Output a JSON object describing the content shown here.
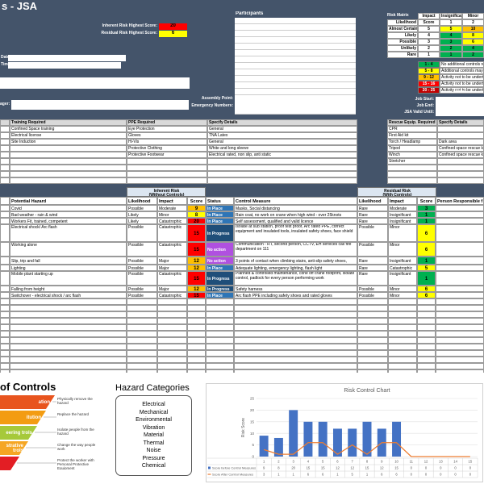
{
  "header": {
    "title": "s - JSA",
    "inherent_label": "Inherent Risk Highest Score:",
    "inherent_score": 20,
    "inherent_color": "#ff0000",
    "residual_label": "Residual Risk Highest Score:",
    "residual_score": 6,
    "residual_color": "#ffff00",
    "participants_label": "Participants",
    "date_label": "Date:",
    "time_label": "Time:",
    "manager_label": "ager:",
    "assembly_label": "Assembly Point:",
    "emergency_label": "Emergency Numbers:",
    "job_start_label": "Job Start:",
    "job_end_label": "Job End:",
    "valid_label": "JSA Valid Until:",
    "date_heading": "Date"
  },
  "risk_matrix": {
    "title": "Risk Matrix",
    "impact_label": "Impact",
    "impacts": [
      "Insignificant",
      "Minor"
    ],
    "likelihood_label": "Likelihood",
    "score_label": "Score",
    "impact_scores": [
      1,
      2
    ],
    "rows": [
      {
        "likelihood": "Almost Certain",
        "score": 5,
        "cells": [
          5,
          10
        ],
        "colors": [
          "#ffff00",
          "#ffc000"
        ]
      },
      {
        "likelihood": "Likely",
        "score": 4,
        "cells": [
          4,
          8
        ],
        "colors": [
          "#00b050",
          "#ffff00"
        ]
      },
      {
        "likelihood": "Possible",
        "score": 3,
        "cells": [
          3,
          6
        ],
        "colors": [
          "#00b050",
          "#ffff00"
        ]
      },
      {
        "likelihood": "Unlikely",
        "score": 2,
        "cells": [
          2,
          4
        ],
        "colors": [
          "#00b050",
          "#00b050"
        ]
      },
      {
        "likelihood": "Rare",
        "score": 1,
        "cells": [
          1,
          2
        ],
        "colors": [
          "#00b050",
          "#00b050"
        ]
      }
    ]
  },
  "risk_bands": [
    {
      "range": "1 - 4",
      "text": "No additional controls required",
      "color": "#00b050"
    },
    {
      "range": "5 - 8",
      "text": "Additional controls may be required",
      "color": "#ffff00"
    },
    {
      "range": "9 - 12",
      "text": "Activity not to be undertaken without s",
      "color": "#ffc000"
    },
    {
      "range": "15 - 16",
      "text": "Activity not to be undertaken without sh",
      "color": "#ff0000"
    },
    {
      "range": "20 - 25",
      "text": "Activity not to be undertaken. Safer Alte",
      "color": "#c00000"
    }
  ],
  "training": {
    "headers": [
      "Training Required",
      "PPE Required",
      "Specify Details",
      "Rescue Equip. Required",
      "Specify Details"
    ],
    "training": [
      "Confined Space training",
      "Electrical license",
      "Site Induction"
    ],
    "ppe": [
      "Eye Protection",
      "Gloves",
      "Hi-Vis",
      "Protective Clothing",
      "Protective Footwear"
    ],
    "ppe_details": [
      "General",
      "TNA Latex",
      "General",
      "White and long sleeve",
      "Electrical rated, non slip, anti static"
    ],
    "rescue": [
      {
        "item": "CPR"
      },
      {
        "item": "First Aid kit"
      },
      {
        "item": "Torch / Headlamp",
        "details": "Dark area"
      },
      {
        "item": "Tripod",
        "details": "Confined space rescue kit"
      },
      {
        "item": "Winch",
        "details": "Confined space rescue kit"
      },
      {
        "item": "Stretcher"
      }
    ]
  },
  "hazards": {
    "inherent_title": "Inherent Risk",
    "inherent_sub": "(Without Controls)",
    "residual_title": "Residual Risk",
    "residual_sub": "(With Controls)",
    "columns": [
      "Potential Hazard",
      "Likelihood",
      "Impact",
      "Score",
      "Status",
      "Control Measure",
      "Likelihood",
      "Impact",
      "Score",
      "Person Responsible f"
    ],
    "status_colors": {
      "In Place": "#2e75b6",
      "In Progress": "#1f4e79",
      "No action": "#b050e0"
    },
    "rows": [
      {
        "hazard": "Covid",
        "likelihood": "Possible",
        "impact": "Moderate",
        "score": 9,
        "score_color": "#ffc000",
        "status": "In Place",
        "control": "Masks, Social distancing",
        "res_likelihood": "Rare",
        "res_impact": "Moderate",
        "res_score": 3,
        "res_color": "#00b050"
      },
      {
        "hazard": "Bad weather - rain & wind",
        "likelihood": "Likely",
        "impact": "Minor",
        "score": 8,
        "score_color": "#ffff00",
        "status": "In Place",
        "control": "Rain coat, no work on crane when high wind - over 25knots",
        "res_likelihood": "Rare",
        "res_impact": "Insignificant",
        "res_score": 1,
        "res_color": "#00b050"
      },
      {
        "hazard": "Workers Fit, trained, competent",
        "likelihood": "Likely",
        "impact": "Catastrophic",
        "score": 20,
        "score_color": "#ff0000",
        "status": "In Place",
        "control": "Self assessment, qualified and valid licence",
        "res_likelihood": "Rare",
        "res_impact": "Insignificant",
        "res_score": 1,
        "res_color": "#00b050"
      },
      {
        "hazard": "Electrical shock/ Arc flash",
        "likelihood": "Possible",
        "impact": "Catastrophic",
        "score": 15,
        "score_color": "#ff0000",
        "status": "In Progress",
        "control": "Isolate at sub station, proof test proof, Arc rated PPE, correct equipment and insulated tools, insulated safety shoes, face shield",
        "res_likelihood": "Possible",
        "res_impact": "Minor",
        "res_score": 6,
        "res_color": "#ffff00"
      },
      {
        "hazard": "Working alone",
        "likelihood": "Possible",
        "impact": "Catastrophic",
        "score": 15,
        "score_color": "#ff0000",
        "status": "No action",
        "control": "Communication - RT, second person, CCTV, EH services call fire department on 111",
        "res_likelihood": "Possible",
        "res_impact": "Minor",
        "res_score": 6,
        "res_color": "#ffff00"
      },
      {
        "hazard": "Slip, trip and fall",
        "likelihood": "Possible",
        "impact": "Major",
        "score": 12,
        "score_color": "#ffc000",
        "status": "No action",
        "control": "3 points of contact when climbing stairs, anti-slip safety shoes, safety gloves",
        "res_likelihood": "Rare",
        "res_impact": "Insignificant",
        "res_score": 1,
        "res_color": "#00b050"
      },
      {
        "hazard": "Lighting",
        "likelihood": "Possible",
        "impact": "Major",
        "score": 12,
        "score_color": "#ffc000",
        "status": "In Place",
        "control": "Adequate lighting, emergency lighting, flash light",
        "res_likelihood": "Rare",
        "res_impact": "Catastrophic",
        "res_score": 5,
        "res_color": "#ffff00"
      },
      {
        "hazard": "Mobile plant starting up",
        "likelihood": "Possible",
        "impact": "Catastrophic",
        "score": 15,
        "score_color": "#ff0000",
        "status": "In Progress",
        "control": "Planned & controlled maintenance, cone off crane footprint, isolate control, padlock for every person performing work",
        "res_likelihood": "Rare",
        "res_impact": "Insignificant",
        "res_score": 1,
        "res_color": "#00b050"
      },
      {
        "hazard": "Falling from height",
        "likelihood": "Possible",
        "impact": "Major",
        "score": 12,
        "score_color": "#ffc000",
        "status": "In Progress",
        "control": "Safety harness",
        "res_likelihood": "Possible",
        "res_impact": "Minor",
        "res_score": 6,
        "res_color": "#ffff00"
      },
      {
        "hazard": "Switchover - electrical shock / arc flash",
        "likelihood": "Possible",
        "impact": "Catastrophic",
        "score": 15,
        "score_color": "#ff0000",
        "status": "In Place",
        "control": "Arc flash PPE including safety shoes and rated gloves",
        "res_likelihood": "Possible",
        "res_impact": "Minor",
        "res_score": 6,
        "res_color": "#ffff00"
      }
    ]
  },
  "hierarchy": {
    "title": "of Controls",
    "levels": [
      {
        "label": "ation",
        "desc": "Physically remove the hazard",
        "color": "#e8541e"
      },
      {
        "label": "itution",
        "desc": "Replace the hazard",
        "color": "#f39c12"
      },
      {
        "label": "eering trols",
        "desc": "Isolate people from the hazard",
        "color": "#a6c93a"
      },
      {
        "label": "strative trols",
        "desc": "Change the way people work",
        "color": "#f5a623"
      },
      {
        "desc": "Protect the worker with Personal Protective Equipment",
        "color": "#e31e24"
      }
    ]
  },
  "hazard_categories": {
    "title": "Hazard Categories",
    "items": [
      "Electrical",
      "Mechanical",
      "Environmental",
      "Vibration",
      "Material",
      "Thermal",
      "Noise",
      "Pressure",
      "Chemical"
    ]
  },
  "chart_data": {
    "type": "bar",
    "title": "Risk Control Chart",
    "y_label": "Risk Score",
    "categories": [
      "1",
      "2",
      "3",
      "4",
      "5",
      "6",
      "7",
      "8",
      "9",
      "10",
      "11",
      "12",
      "13",
      "14",
      "15"
    ],
    "series": [
      {
        "name": "Score before Control Measures",
        "type": "bar",
        "color": "#4472c4",
        "values": [
          9,
          8,
          20,
          15,
          15,
          12,
          12,
          15,
          12,
          15,
          0,
          0,
          0,
          0,
          0
        ]
      },
      {
        "name": "Score After Control Measures",
        "type": "line",
        "color": "#ed7d31",
        "values": [
          3,
          1,
          1,
          6,
          6,
          1,
          5,
          1,
          6,
          6,
          0,
          0,
          0,
          0,
          0
        ]
      }
    ],
    "ylim": [
      0,
      25
    ],
    "yticks": [
      0,
      5,
      10,
      15,
      20,
      25
    ],
    "grid": true
  }
}
